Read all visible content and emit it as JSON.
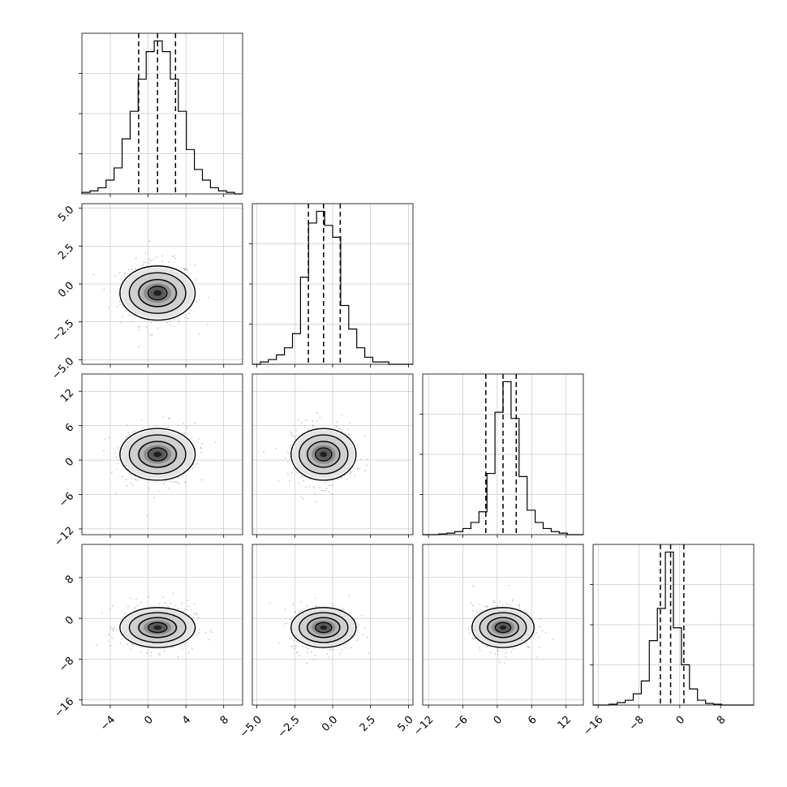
{
  "chart_data": {
    "type": "corner",
    "title": "",
    "grid": true,
    "colors": {
      "background": "#ffffff",
      "line": "#000000",
      "grid": "#b0b0b0",
      "points": "#888888"
    },
    "parameters": [
      {
        "ticks": [
          "−4",
          "0",
          "4",
          "8"
        ],
        "range": [
          -7,
          10
        ],
        "quantiles": [
          -1.0,
          1.0,
          2.9
        ]
      },
      {
        "ticks": [
          "−5.0",
          "−2.5",
          "0.0",
          "2.5",
          "5.0"
        ],
        "range": [
          -5.3,
          5.3
        ],
        "quantiles": [
          -1.6,
          -0.6,
          0.5
        ]
      },
      {
        "ticks": [
          "−12",
          "−6",
          "0",
          "6",
          "12"
        ],
        "range": [
          -13,
          15
        ],
        "quantiles": [
          -2.0,
          1.0,
          3.3
        ]
      },
      {
        "ticks": [
          "−16",
          "−8",
          "0",
          "8"
        ],
        "range": [
          -17,
          14.5
        ],
        "quantiles": [
          -3.8,
          -1.8,
          0.8
        ]
      }
    ],
    "histogram_counts": [
      [
        1,
        2,
        4,
        9,
        17,
        36,
        54,
        75,
        93,
        100,
        93,
        75,
        54,
        29,
        16,
        9,
        4,
        2,
        1,
        0
      ],
      [
        0,
        1,
        2,
        4,
        7,
        13,
        37,
        60,
        65,
        59,
        54,
        25,
        15,
        7,
        3,
        1,
        1,
        0,
        0,
        0
      ],
      [
        0,
        0,
        0.5,
        1,
        2,
        4,
        8,
        15,
        40,
        80,
        100,
        76,
        38,
        16,
        8,
        4,
        2,
        1,
        0,
        0
      ],
      [
        0,
        0,
        0.5,
        1.5,
        3,
        7,
        15,
        40,
        60,
        95,
        48,
        25,
        10,
        3,
        1,
        0.5,
        0,
        0,
        0,
        0
      ]
    ],
    "pair_correlation": 0.0,
    "contour_levels": [
      "0.5 sigma",
      "1 sigma",
      "1.5 sigma",
      "2 sigma"
    ]
  }
}
